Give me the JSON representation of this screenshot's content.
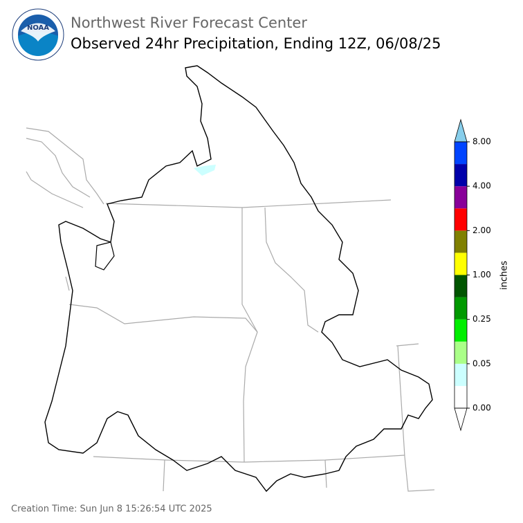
{
  "header": {
    "logo_text": "NOAA",
    "org": "Northwest River Forecast Center",
    "title": "Observed 24hr Precipitation, Ending 12Z, 06/08/25"
  },
  "colorbar": {
    "label": "inches",
    "ticks": [
      {
        "value": 0,
        "label": "0.00"
      },
      {
        "value": 0.05,
        "label": "0.05"
      },
      {
        "value": 0.25,
        "label": "0.25"
      },
      {
        "value": 1,
        "label": "1.00"
      },
      {
        "value": 2,
        "label": "2.00"
      },
      {
        "value": 4,
        "label": "4.00"
      },
      {
        "value": 8,
        "label": "8.00"
      }
    ],
    "colors": [
      "#ffffff",
      "#ccffff",
      "#aaff88",
      "#00ee00",
      "#009900",
      "#005500",
      "#ffff00",
      "#808000",
      "#ff0000",
      "#880099",
      "#0000aa",
      "#0044ff"
    ],
    "under_color": "#ffffff",
    "over_color": "#87ceeb"
  },
  "footer": "Creation Time: Sun Jun 8 15:26:54 UTC 2025"
}
